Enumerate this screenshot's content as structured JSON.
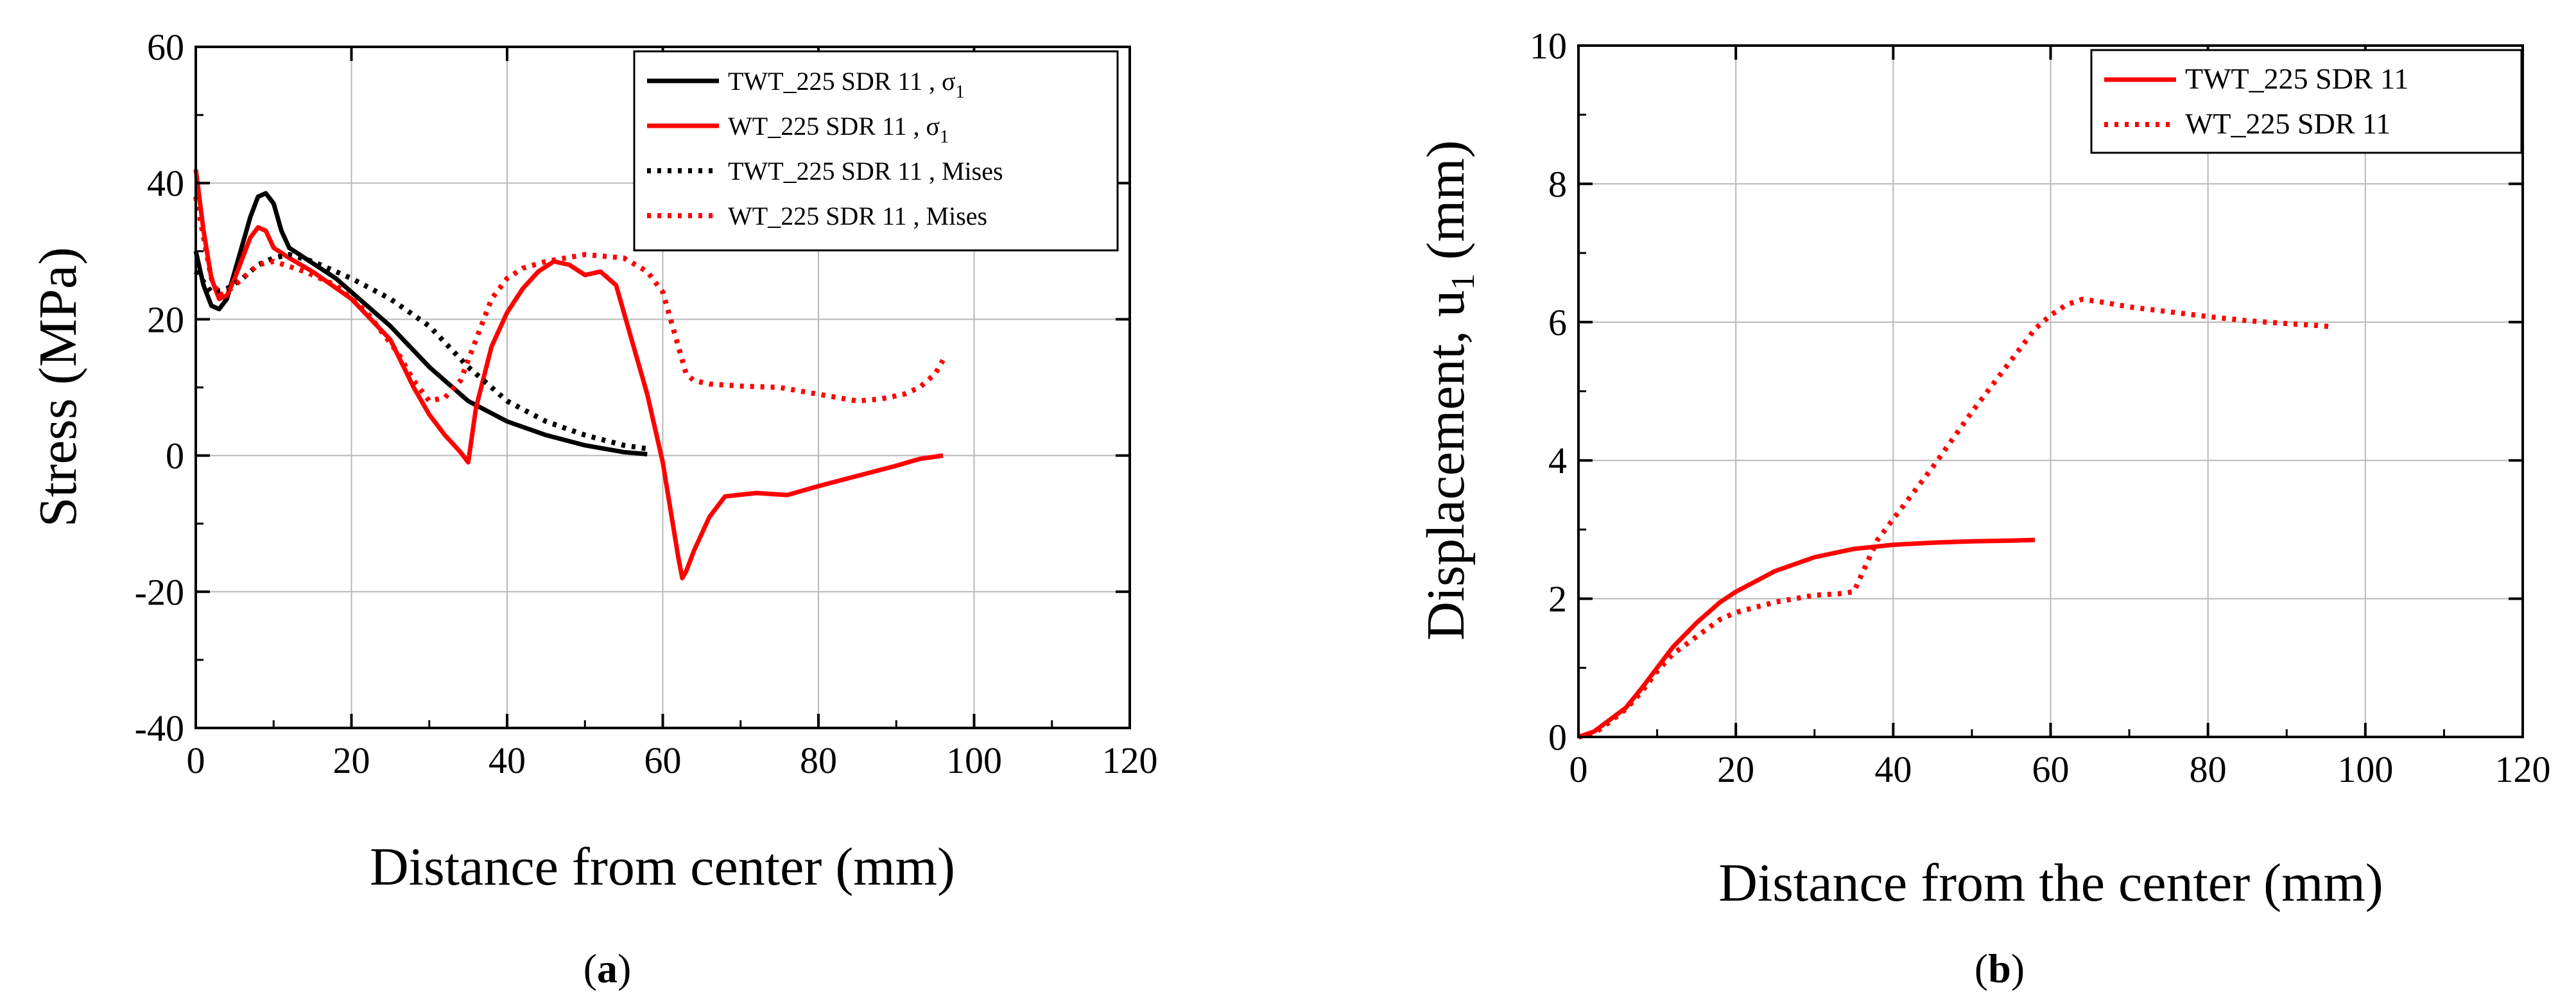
{
  "chart_data": [
    {
      "id": "a",
      "type": "line",
      "caption": {
        "open": "(",
        "letter": "a",
        "close": ")"
      },
      "xlabel": "Distance from center (mm)",
      "ylabel": "Stress (MPa)",
      "xlim": [
        0,
        120
      ],
      "ylim": [
        -40,
        60
      ],
      "xticks": [
        0,
        20,
        40,
        60,
        80,
        100,
        120
      ],
      "yticks": [
        -40,
        -20,
        0,
        20,
        40,
        60
      ],
      "grid": true,
      "legend_position": "top-right",
      "series": [
        {
          "name": "TWT_225 SDR 11 , σ",
          "name_sub": "1",
          "color": "#000000",
          "style": "solid",
          "points": [
            [
              0,
              30
            ],
            [
              1,
              25
            ],
            [
              2,
              22
            ],
            [
              3,
              21.5
            ],
            [
              4,
              23
            ],
            [
              5,
              27
            ],
            [
              6,
              31
            ],
            [
              7,
              35
            ],
            [
              8,
              38
            ],
            [
              9,
              38.5
            ],
            [
              10,
              37
            ],
            [
              11,
              33
            ],
            [
              12,
              30.5
            ],
            [
              14,
              29
            ],
            [
              16,
              27.5
            ],
            [
              18,
              26
            ],
            [
              20,
              24
            ],
            [
              25,
              19
            ],
            [
              30,
              13
            ],
            [
              35,
              8
            ],
            [
              40,
              5
            ],
            [
              45,
              3
            ],
            [
              50,
              1.5
            ],
            [
              55,
              0.5
            ],
            [
              58,
              0.2
            ]
          ]
        },
        {
          "name": "WT_225 SDR 11 , σ",
          "name_sub": "1",
          "color": "#ff0000",
          "style": "solid",
          "points": [
            [
              0,
              42
            ],
            [
              1,
              33
            ],
            [
              2,
              26
            ],
            [
              3,
              23
            ],
            [
              4,
              23.5
            ],
            [
              5,
              26
            ],
            [
              6,
              29
            ],
            [
              7,
              32
            ],
            [
              8,
              33.5
            ],
            [
              9,
              33
            ],
            [
              10,
              30.5
            ],
            [
              12,
              29
            ],
            [
              15,
              27
            ],
            [
              20,
              23
            ],
            [
              25,
              17
            ],
            [
              28,
              10
            ],
            [
              30,
              6
            ],
            [
              32,
              3
            ],
            [
              34,
              0.5
            ],
            [
              35,
              -1
            ],
            [
              36,
              7
            ],
            [
              38,
              16
            ],
            [
              40,
              21
            ],
            [
              42,
              24.5
            ],
            [
              44,
              27
            ],
            [
              46,
              28.5
            ],
            [
              48,
              28
            ],
            [
              50,
              26.5
            ],
            [
              52,
              27
            ],
            [
              54,
              25
            ],
            [
              56,
              17
            ],
            [
              58,
              9
            ],
            [
              60,
              -1
            ],
            [
              61,
              -8
            ],
            [
              62,
              -15
            ],
            [
              62.5,
              -18
            ],
            [
              63,
              -17
            ],
            [
              64,
              -14
            ],
            [
              66,
              -9
            ],
            [
              68,
              -6
            ],
            [
              72,
              -5.5
            ],
            [
              76,
              -5.8
            ],
            [
              80,
              -4.5
            ],
            [
              85,
              -3
            ],
            [
              90,
              -1.5
            ],
            [
              93,
              -0.5
            ],
            [
              96,
              0
            ]
          ]
        },
        {
          "name": "TWT_225 SDR 11 , Mises",
          "name_sub": "",
          "color": "#000000",
          "style": "dotted",
          "points": [
            [
              0,
              27
            ],
            [
              2,
              24
            ],
            [
              4,
              24.5
            ],
            [
              6,
              26
            ],
            [
              8,
              28
            ],
            [
              10,
              29
            ],
            [
              12,
              29.5
            ],
            [
              15,
              28.5
            ],
            [
              20,
              26
            ],
            [
              25,
              23
            ],
            [
              30,
              19
            ],
            [
              35,
              13
            ],
            [
              40,
              8
            ],
            [
              45,
              5
            ],
            [
              50,
              3
            ],
            [
              55,
              1.5
            ],
            [
              58,
              1
            ]
          ]
        },
        {
          "name": "WT_225 SDR 11 , Mises",
          "name_sub": "",
          "color": "#ff0000",
          "style": "dotted",
          "points": [
            [
              0,
              38
            ],
            [
              2,
              26
            ],
            [
              3,
              23.5
            ],
            [
              4,
              24
            ],
            [
              6,
              26
            ],
            [
              8,
              28
            ],
            [
              10,
              28.5
            ],
            [
              14,
              27
            ],
            [
              18,
              25
            ],
            [
              22,
              21
            ],
            [
              26,
              15
            ],
            [
              28,
              11
            ],
            [
              30,
              8
            ],
            [
              32,
              8.5
            ],
            [
              34,
              11
            ],
            [
              36,
              17
            ],
            [
              38,
              23
            ],
            [
              40,
              26
            ],
            [
              42,
              27.5
            ],
            [
              45,
              28.5
            ],
            [
              50,
              29.5
            ],
            [
              55,
              29
            ],
            [
              58,
              27
            ],
            [
              60,
              24
            ],
            [
              62,
              16
            ],
            [
              63,
              12
            ],
            [
              64,
              11
            ],
            [
              66,
              10.5
            ],
            [
              70,
              10.2
            ],
            [
              75,
              10
            ],
            [
              80,
              9
            ],
            [
              85,
              8
            ],
            [
              88,
              8.3
            ],
            [
              91,
              9
            ],
            [
              93,
              10
            ],
            [
              95,
              12
            ],
            [
              96,
              14
            ]
          ]
        }
      ]
    },
    {
      "id": "b",
      "type": "line",
      "caption": {
        "open": "(",
        "letter": "b",
        "close": ")"
      },
      "xlabel": "Distance from the center (mm)",
      "ylabel": "Displacement, u",
      "ylabel_sub": "1",
      "ylabel_unit": " (mm)",
      "xlim": [
        0,
        120
      ],
      "ylim": [
        0,
        10
      ],
      "xticks": [
        0,
        20,
        40,
        60,
        80,
        100,
        120
      ],
      "yticks": [
        0,
        2,
        4,
        6,
        8,
        10
      ],
      "grid": true,
      "legend_position": "top-right",
      "series": [
        {
          "name": "TWT_225 SDR 11",
          "color": "#ff0000",
          "style": "solid",
          "points": [
            [
              0,
              0
            ],
            [
              2,
              0.08
            ],
            [
              4,
              0.25
            ],
            [
              6,
              0.42
            ],
            [
              8,
              0.7
            ],
            [
              10,
              1.0
            ],
            [
              12,
              1.3
            ],
            [
              15,
              1.65
            ],
            [
              18,
              1.95
            ],
            [
              20,
              2.1
            ],
            [
              25,
              2.4
            ],
            [
              30,
              2.6
            ],
            [
              35,
              2.72
            ],
            [
              40,
              2.78
            ],
            [
              45,
              2.81
            ],
            [
              50,
              2.83
            ],
            [
              55,
              2.84
            ],
            [
              58,
              2.85
            ]
          ]
        },
        {
          "name": "WT_225 SDR 11",
          "color": "#ff0000",
          "style": "dotted",
          "points": [
            [
              0,
              0
            ],
            [
              2,
              0.05
            ],
            [
              4,
              0.22
            ],
            [
              6,
              0.4
            ],
            [
              8,
              0.65
            ],
            [
              10,
              0.95
            ],
            [
              12,
              1.2
            ],
            [
              15,
              1.45
            ],
            [
              18,
              1.7
            ],
            [
              20,
              1.8
            ],
            [
              25,
              1.95
            ],
            [
              30,
              2.05
            ],
            [
              33,
              2.07
            ],
            [
              35,
              2.1
            ],
            [
              38,
              2.85
            ],
            [
              40,
              3.15
            ],
            [
              45,
              3.9
            ],
            [
              50,
              4.7
            ],
            [
              55,
              5.45
            ],
            [
              58,
              5.9
            ],
            [
              60,
              6.1
            ],
            [
              62,
              6.25
            ],
            [
              64,
              6.33
            ],
            [
              66,
              6.3
            ],
            [
              70,
              6.22
            ],
            [
              75,
              6.15
            ],
            [
              80,
              6.08
            ],
            [
              85,
              6.02
            ],
            [
              90,
              5.98
            ],
            [
              94,
              5.95
            ],
            [
              96,
              5.93
            ]
          ]
        }
      ]
    }
  ]
}
